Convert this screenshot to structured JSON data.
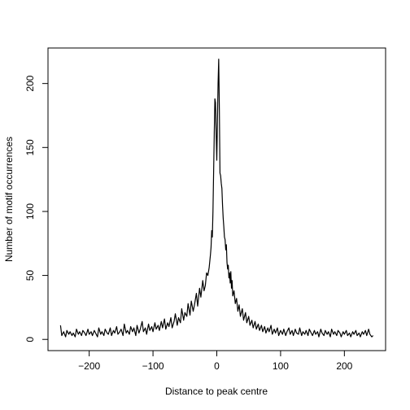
{
  "chart_data": {
    "type": "line",
    "xlabel": "Distance to peak centre",
    "ylabel": "Number of motif occurrences",
    "color": "#000000",
    "xlim": [
      -264.6,
      264.6
    ],
    "ylim": [
      -8.76,
      227.76
    ],
    "xticks": [
      {
        "value": -200,
        "label": "−200"
      },
      {
        "value": -100,
        "label": "−100"
      },
      0,
      100,
      200
    ],
    "yticks": [
      0,
      50,
      100,
      150,
      200
    ],
    "x": [
      -245,
      -243,
      -240,
      -237,
      -235,
      -232,
      -230,
      -227,
      -225,
      -222,
      -220,
      -217,
      -215,
      -212,
      -210,
      -207,
      -205,
      -202,
      -200,
      -197,
      -195,
      -192,
      -190,
      -187,
      -185,
      -182,
      -180,
      -177,
      -175,
      -172,
      -170,
      -167,
      -165,
      -162,
      -160,
      -157,
      -155,
      -152,
      -150,
      -147,
      -145,
      -142,
      -140,
      -137,
      -135,
      -132,
      -130,
      -127,
      -125,
      -122,
      -120,
      -117,
      -115,
      -112,
      -110,
      -107,
      -105,
      -102,
      -100,
      -97,
      -95,
      -92,
      -90,
      -87,
      -85,
      -82,
      -80,
      -77,
      -75,
      -72,
      -70,
      -67,
      -65,
      -62,
      -60,
      -57,
      -55,
      -52,
      -50,
      -47,
      -45,
      -42,
      -40,
      -37,
      -35,
      -32,
      -30,
      -27,
      -25,
      -22,
      -20,
      -18,
      -16,
      -14,
      -12,
      -10,
      -9,
      -8,
      -7,
      -6,
      -5,
      -4,
      -3,
      -2,
      -1,
      0,
      1,
      2,
      3,
      4,
      5,
      6,
      7,
      8,
      9,
      10,
      11,
      12,
      13,
      14,
      15,
      16,
      17,
      18,
      19,
      20,
      21,
      22,
      23,
      24,
      25,
      27,
      29,
      31,
      33,
      35,
      37,
      40,
      42,
      45,
      47,
      50,
      52,
      55,
      57,
      60,
      62,
      65,
      67,
      70,
      72,
      75,
      77,
      80,
      82,
      85,
      87,
      90,
      92,
      95,
      97,
      100,
      103,
      105,
      108,
      110,
      113,
      115,
      118,
      120,
      123,
      125,
      128,
      130,
      133,
      135,
      138,
      140,
      143,
      145,
      148,
      150,
      153,
      155,
      158,
      160,
      163,
      165,
      168,
      170,
      173,
      175,
      178,
      180,
      183,
      185,
      188,
      190,
      193,
      195,
      198,
      200,
      203,
      205,
      208,
      210,
      213,
      215,
      218,
      220,
      223,
      225,
      228,
      230,
      233,
      235,
      238,
      240,
      243,
      245
    ],
    "values": [
      11,
      3,
      6,
      2,
      7,
      4,
      6,
      3,
      5,
      2,
      8,
      4,
      6,
      3,
      7,
      5,
      3,
      8,
      4,
      6,
      3,
      7,
      5,
      2,
      9,
      4,
      6,
      3,
      8,
      5,
      4,
      9,
      3,
      7,
      5,
      10,
      4,
      6,
      8,
      3,
      12,
      5,
      7,
      4,
      10,
      6,
      9,
      3,
      11,
      5,
      8,
      14,
      6,
      9,
      4,
      12,
      7,
      10,
      6,
      13,
      8,
      11,
      7,
      14,
      9,
      16,
      8,
      13,
      10,
      17,
      9,
      14,
      20,
      11,
      17,
      13,
      24,
      15,
      21,
      18,
      28,
      19,
      30,
      22,
      27,
      36,
      26,
      40,
      33,
      46,
      38,
      42,
      52,
      50,
      56,
      66,
      72,
      85,
      80,
      100,
      130,
      160,
      188,
      185,
      160,
      140,
      170,
      200,
      219,
      180,
      130,
      128,
      122,
      118,
      105,
      95,
      88,
      80,
      78,
      70,
      74,
      60,
      55,
      58,
      48,
      52,
      44,
      53,
      40,
      46,
      34,
      38,
      28,
      32,
      22,
      27,
      18,
      24,
      15,
      21,
      13,
      18,
      11,
      15,
      9,
      14,
      8,
      12,
      7,
      11,
      6,
      10,
      5,
      9,
      6,
      11,
      4,
      8,
      5,
      9,
      3,
      7,
      4,
      8,
      3,
      6,
      9,
      4,
      7,
      3,
      8,
      5,
      4,
      9,
      3,
      6,
      4,
      7,
      3,
      8,
      5,
      3,
      7,
      4,
      6,
      2,
      8,
      5,
      3,
      7,
      4,
      6,
      2,
      8,
      4,
      6,
      3,
      7,
      5,
      2,
      6,
      4,
      7,
      3,
      5,
      2,
      6,
      4,
      7,
      3,
      5,
      2,
      6,
      4,
      7,
      3,
      8,
      4,
      2,
      3
    ]
  }
}
